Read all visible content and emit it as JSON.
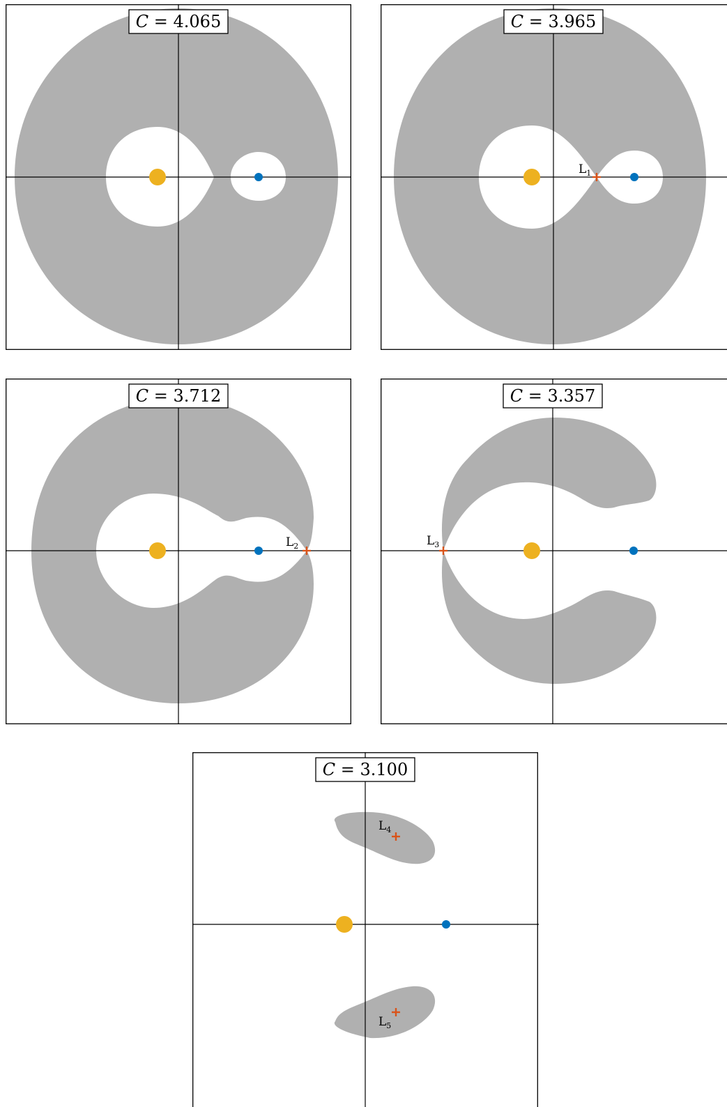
{
  "panels": [
    {
      "id": "p1",
      "c_label_var": "C",
      "c_label_eq": " = ",
      "c_value": "4.065"
    },
    {
      "id": "p2",
      "c_label_var": "C",
      "c_label_eq": " = ",
      "c_value": "3.965",
      "lagrange": [
        {
          "name": "L",
          "sub": "1"
        }
      ]
    },
    {
      "id": "p3",
      "c_label_var": "C",
      "c_label_eq": " = ",
      "c_value": "3.712",
      "lagrange": [
        {
          "name": "L",
          "sub": "2"
        }
      ]
    },
    {
      "id": "p4",
      "c_label_var": "C",
      "c_label_eq": " = ",
      "c_value": "3.357",
      "lagrange": [
        {
          "name": "L",
          "sub": "3"
        }
      ]
    },
    {
      "id": "p5",
      "c_label_var": "C",
      "c_label_eq": " = ",
      "c_value": "3.100",
      "lagrange": [
        {
          "name": "L",
          "sub": "4"
        },
        {
          "name": "L",
          "sub": "5"
        }
      ]
    }
  ],
  "colors": {
    "forbidden_region": "#b0b0b0",
    "primary_body": "#edb120",
    "secondary_body": "#0072bd",
    "lagrange_marker": "#d95319"
  }
}
